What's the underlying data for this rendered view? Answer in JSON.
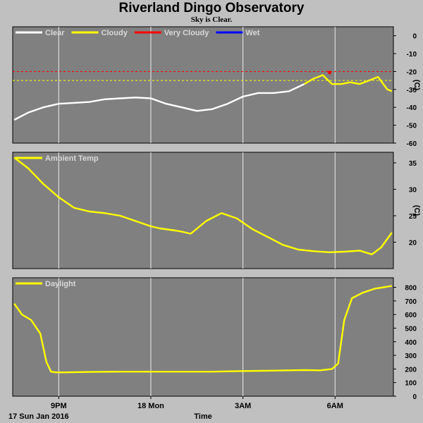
{
  "title": "Riverland Dingo Observatory",
  "subtitle": "Sky is Clear.",
  "x_axis": {
    "label": "Time",
    "date_label": "17 Sun Jan 2016",
    "ticks": [
      {
        "label": "9PM",
        "hour": 21
      },
      {
        "label": "18 Mon",
        "hour": 24
      },
      {
        "label": "3AM",
        "hour": 27
      },
      {
        "label": "6AM",
        "hour": 30
      }
    ],
    "range_hours": [
      19.5,
      31.9
    ]
  },
  "chart_data": [
    {
      "type": "line",
      "name": "sky",
      "unit": "(C)",
      "ylim": [
        -60,
        5
      ],
      "yticks": [
        0,
        -10,
        -20,
        -30,
        -40,
        -50,
        -60
      ],
      "legend": [
        {
          "label": "Clear",
          "color": "#ffffff"
        },
        {
          "label": "Cloudy",
          "color": "#ffff00"
        },
        {
          "label": "Very Cloudy",
          "color": "#ff0000"
        },
        {
          "label": "Wet",
          "color": "#0000ff"
        }
      ],
      "thresholds": [
        {
          "value": -20,
          "color": "#ff0000"
        },
        {
          "value": -25,
          "color": "#ffff00"
        }
      ],
      "series": [
        {
          "name": "Clear",
          "color": "#ffffff",
          "x": [
            19.55,
            20.0,
            20.5,
            21.0,
            21.5,
            22.0,
            22.5,
            23.0,
            23.5,
            24.0,
            24.5,
            25.0,
            25.5,
            26.0,
            26.5,
            27.0,
            27.5,
            28.0,
            28.5,
            29.0
          ],
          "y": [
            -47,
            -43,
            -40,
            -38,
            -37.5,
            -37,
            -35.5,
            -35,
            -34.5,
            -35,
            -38,
            -40,
            -42,
            -41,
            -38,
            -34,
            -32,
            -32,
            -31,
            -27
          ]
        },
        {
          "name": "Cloudy",
          "color": "#ffff00",
          "x": [
            29.0,
            29.3,
            29.6,
            29.9,
            30.2,
            30.5,
            30.8,
            31.1,
            31.4,
            31.7,
            31.85
          ],
          "y": [
            -27,
            -24,
            -22,
            -27,
            -27,
            -26,
            -27,
            -25,
            -23,
            -30,
            -31
          ]
        },
        {
          "name": "Very Cloudy",
          "color": "#ff0000",
          "x": [
            29.82
          ],
          "y": [
            -20.5
          ]
        }
      ]
    },
    {
      "type": "line",
      "name": "ambient",
      "unit": "(C)",
      "ylim": [
        15,
        37
      ],
      "yticks": [
        35,
        30,
        25,
        20
      ],
      "legend": [
        {
          "label": "Ambient Temp",
          "color": "#ffff00"
        }
      ],
      "series": [
        {
          "name": "Ambient Temp",
          "color": "#ffff00",
          "x": [
            19.55,
            20.0,
            20.5,
            21.0,
            21.5,
            22.0,
            22.5,
            23.0,
            23.5,
            24.0,
            24.3,
            24.8,
            25.0,
            25.3,
            25.8,
            26.3,
            26.8,
            27.3,
            27.8,
            28.3,
            28.8,
            29.3,
            29.8,
            30.3,
            30.8,
            31.2,
            31.5,
            31.85
          ],
          "y": [
            36,
            34,
            31,
            28.5,
            26.5,
            25.8,
            25.5,
            25,
            24,
            23,
            22.6,
            22.2,
            22,
            21.6,
            24,
            25.5,
            24.5,
            22.5,
            21,
            19.5,
            18.6,
            18.3,
            18.1,
            18.2,
            18.4,
            17.7,
            19,
            21.8
          ]
        }
      ]
    },
    {
      "type": "line",
      "name": "daylight",
      "unit": "",
      "ylim": [
        0,
        870
      ],
      "yticks": [
        800,
        700,
        600,
        500,
        400,
        300,
        200,
        100,
        0
      ],
      "legend": [
        {
          "label": "Daylight",
          "color": "#ffff00"
        }
      ],
      "series": [
        {
          "name": "Daylight",
          "color": "#ffff00",
          "x": [
            19.55,
            19.8,
            20.1,
            20.4,
            20.6,
            20.75,
            20.9,
            21.2,
            22,
            23,
            24,
            25,
            26,
            27,
            28,
            28.5,
            29,
            29.5,
            29.9,
            30.1,
            30.3,
            30.55,
            30.9,
            31.3,
            31.85
          ],
          "y": [
            680,
            600,
            560,
            460,
            250,
            180,
            175,
            175,
            178,
            180,
            180,
            180,
            180,
            185,
            188,
            190,
            192,
            190,
            200,
            240,
            560,
            720,
            760,
            790,
            810
          ]
        }
      ]
    }
  ]
}
